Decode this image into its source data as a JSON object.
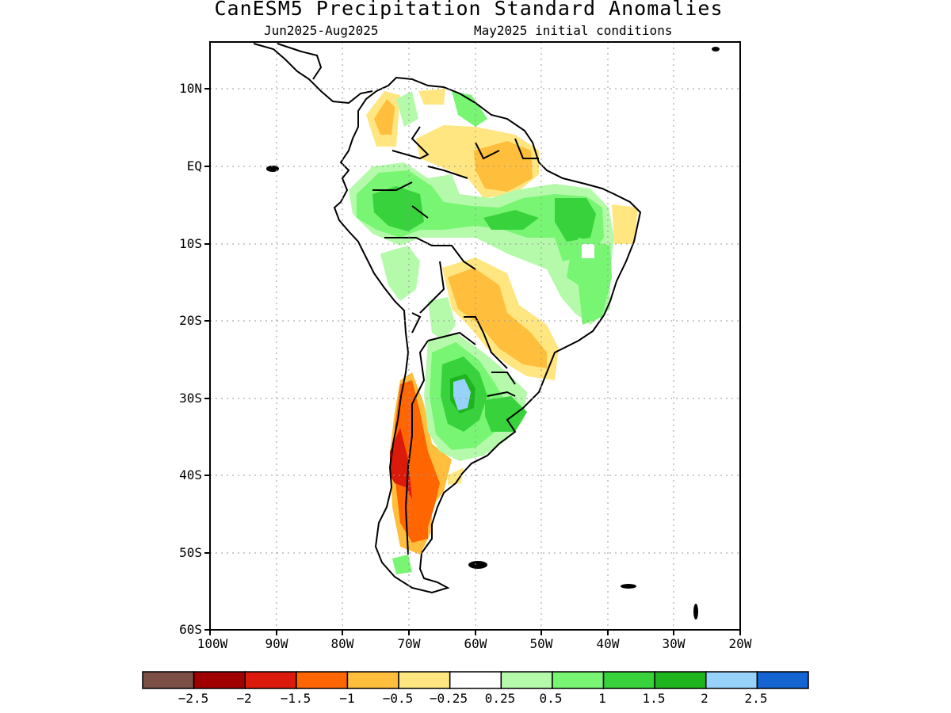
{
  "title": "CanESM5 Precipitation Standard Anomalies",
  "subtitle_left": "Jun2025-Aug2025",
  "subtitle_right": "May2025 initial conditions",
  "y_labels": [
    "10N",
    "EQ",
    "10S",
    "20S",
    "30S",
    "40S",
    "50S",
    "60S"
  ],
  "x_labels": [
    "100W",
    "90W",
    "80W",
    "70W",
    "60W",
    "50W",
    "40W",
    "30W",
    "20W"
  ],
  "colorbar": {
    "colors": [
      "#7b4f46",
      "#a00000",
      "#dc1a0c",
      "#ff6500",
      "#ffbe3c",
      "#ffe680",
      "#ffffff",
      "#b4faaa",
      "#78f573",
      "#37d23c",
      "#1eb41e",
      "#96d2fa",
      "#1464d2"
    ],
    "labels": [
      "−2.5",
      "−2",
      "−1.5",
      "−1",
      "−0.5",
      "−0.25",
      "0.25",
      "0.5",
      "1",
      "1.5",
      "2",
      "2.5"
    ]
  },
  "map": {
    "lon_range": [
      -100,
      -20
    ],
    "lat_range": [
      -60,
      15
    ],
    "grid_lines": "dotted"
  }
}
